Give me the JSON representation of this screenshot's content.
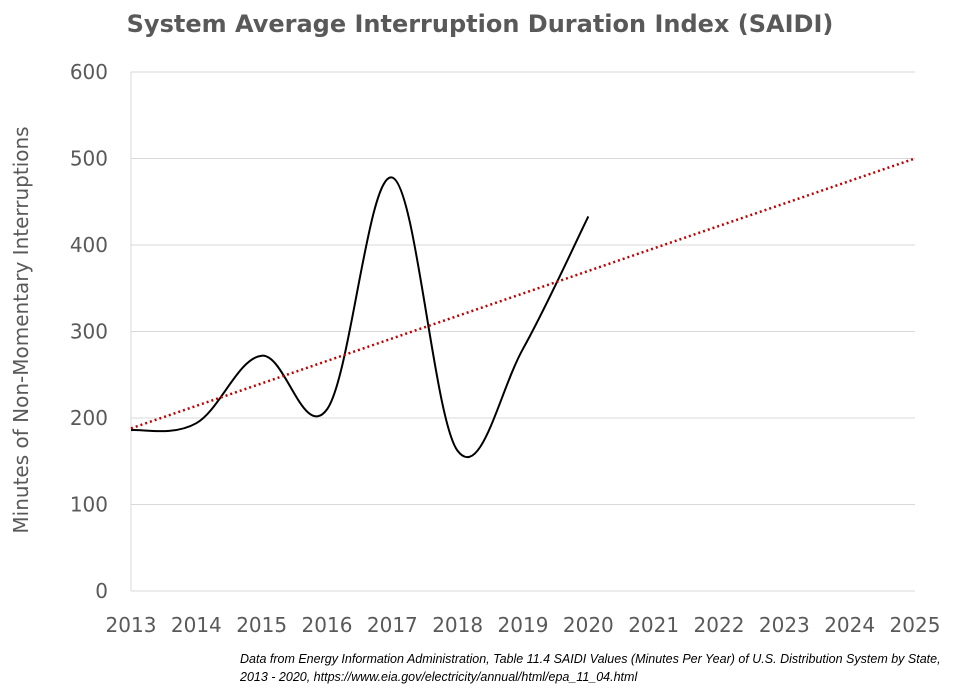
{
  "chart_data": {
    "type": "line",
    "title": "System Average Interruption Duration Index (SAIDI)",
    "ylabel": "Minutes of Non-Momentary Interruptions",
    "xlabel": "",
    "x_ticks": [
      "2013",
      "2014",
      "2015",
      "2016",
      "2017",
      "2018",
      "2019",
      "2020",
      "2021",
      "2022",
      "2023",
      "2024",
      "2025"
    ],
    "y_ticks": [
      "0",
      "100",
      "200",
      "300",
      "400",
      "500",
      "600"
    ],
    "xlim": [
      2013,
      2025
    ],
    "ylim": [
      0,
      600
    ],
    "grid": true,
    "series": [
      {
        "style": "smooth-solid",
        "color": "#000000",
        "x": [
          2013,
          2014,
          2015,
          2016,
          2017,
          2018,
          2019,
          2020
        ],
        "y": [
          186,
          194,
          272,
          210,
          478,
          162,
          280,
          433
        ]
      },
      {
        "style": "dotted-trendline",
        "color": "#c00000",
        "x": [
          2013,
          2025
        ],
        "y": [
          188,
          500
        ]
      }
    ]
  },
  "source_note": "Data from Energy Information Administration, Table 11.4 SAIDI Values (Minutes Per Year) of U.S. Distribution System by State, 2013 - 2020, https://www.eia.gov/electricity/annual/html/epa_11_04.html"
}
